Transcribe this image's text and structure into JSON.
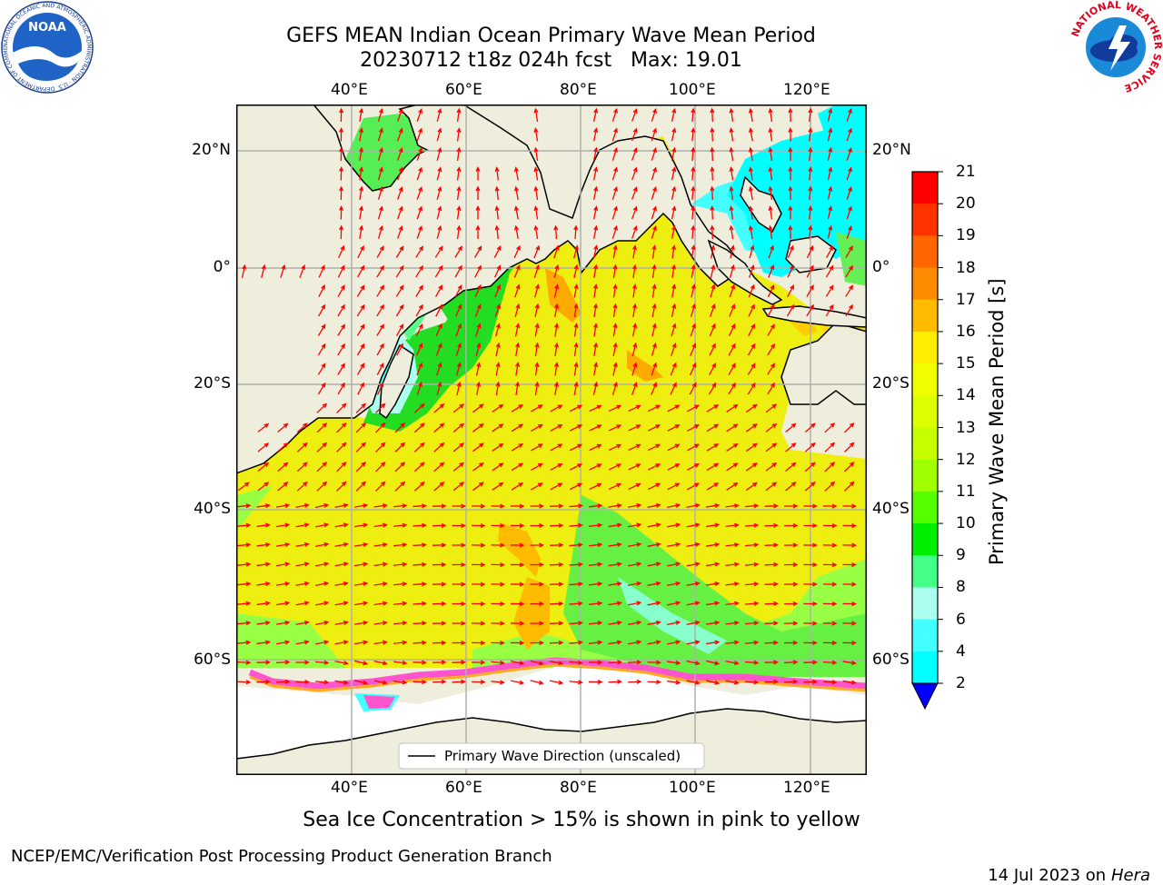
{
  "header": {
    "title_line1": "GEFS MEAN Indian Ocean Primary Wave Mean Period",
    "title_line2": "20230712 t18z 024h fcst   Max: 19.01"
  },
  "logos": {
    "noaa_text": "NOAA",
    "noaa_ring": "NATIONAL OCEANIC AND ATMOSPHERIC ADMINISTRATION · U.S. DEPARTMENT OF COMMERCE",
    "nws_ring": "NATIONAL WEATHER SERVICE"
  },
  "map": {
    "lon_labels": [
      "40°E",
      "60°E",
      "80°E",
      "100°E",
      "120°E"
    ],
    "lat_labels": [
      "20°N",
      "0°",
      "20°S",
      "40°S",
      "60°S"
    ],
    "legend_label": "Primary Wave Direction (unscaled)",
    "colors": {
      "land": "#efeedc",
      "ice_free": "#ffffff",
      "arrow": "#ff0000",
      "grid": "#b0b0b0"
    }
  },
  "colorbar": {
    "label": "Primary Wave Mean Period [s]",
    "ticks": [
      "21",
      "20",
      "19",
      "18",
      "17",
      "16",
      "15",
      "14",
      "13",
      "12",
      "11",
      "10",
      "9",
      "8",
      "6",
      "4",
      "2"
    ],
    "colors": [
      "#ff0000",
      "#ff3300",
      "#ff6600",
      "#ff8c00",
      "#ffbb00",
      "#ffee00",
      "#f0ff00",
      "#ddff00",
      "#c6ff00",
      "#a0ff00",
      "#55ff00",
      "#00ee00",
      "#44ff88",
      "#aaffee",
      "#44ffff",
      "#00ffff",
      "#0088ff"
    ],
    "extend_color": "#0000ff"
  },
  "caption": "Sea Ice Concentration > 15% is shown in pink to yellow",
  "footer": {
    "left": "NCEP/EMC/Verification Post Processing Product Generation Branch",
    "date": "14 Jul 2023 on ",
    "machine": "Hera"
  }
}
